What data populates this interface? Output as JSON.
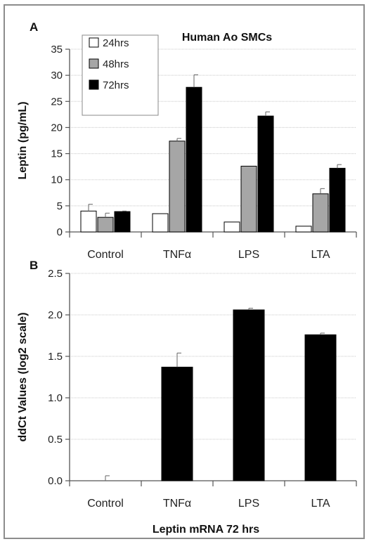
{
  "chart_data": [
    {
      "panel": "A",
      "type": "bar",
      "title": "Human Ao SMCs",
      "ylabel": "Leptin (pg/mL)",
      "xlabel": "",
      "ylim": [
        0,
        35
      ],
      "yticks": [
        0,
        5,
        10,
        15,
        20,
        25,
        30,
        35
      ],
      "grid": true,
      "legend": "top-left",
      "categories": [
        "Control",
        "TNFα",
        "LPS",
        "LTA"
      ],
      "series": [
        {
          "name": "24hrs",
          "color": "#ffffff",
          "values": [
            4.0,
            3.5,
            1.9,
            1.1
          ],
          "errors": [
            1.3,
            0,
            0,
            0
          ]
        },
        {
          "name": "48hrs",
          "color": "#a6a6a6",
          "values": [
            2.8,
            17.4,
            12.6,
            7.3
          ],
          "errors": [
            0.8,
            0.5,
            0,
            1.0
          ]
        },
        {
          "name": "72hrs",
          "color": "#000000",
          "values": [
            3.9,
            27.7,
            22.2,
            12.2
          ],
          "errors": [
            0.1,
            2.4,
            0.8,
            0.7
          ]
        }
      ]
    },
    {
      "panel": "B",
      "type": "bar",
      "title": "",
      "ylabel": "ddCt Values (log2 scale)",
      "xlabel": "Leptin mRNA 72 hrs",
      "ylim": [
        0,
        2.5
      ],
      "yticks": [
        "0.0",
        "0.5",
        "1.0",
        "1.5",
        "2.0",
        "2.5"
      ],
      "grid": true,
      "categories": [
        "Control",
        "TNFα",
        "LPS",
        "LTA"
      ],
      "series": [
        {
          "color": "#000000",
          "values": [
            0.0,
            1.37,
            2.06,
            1.76
          ],
          "errors": [
            0.06,
            0.17,
            0.02,
            0.02
          ]
        }
      ]
    }
  ]
}
